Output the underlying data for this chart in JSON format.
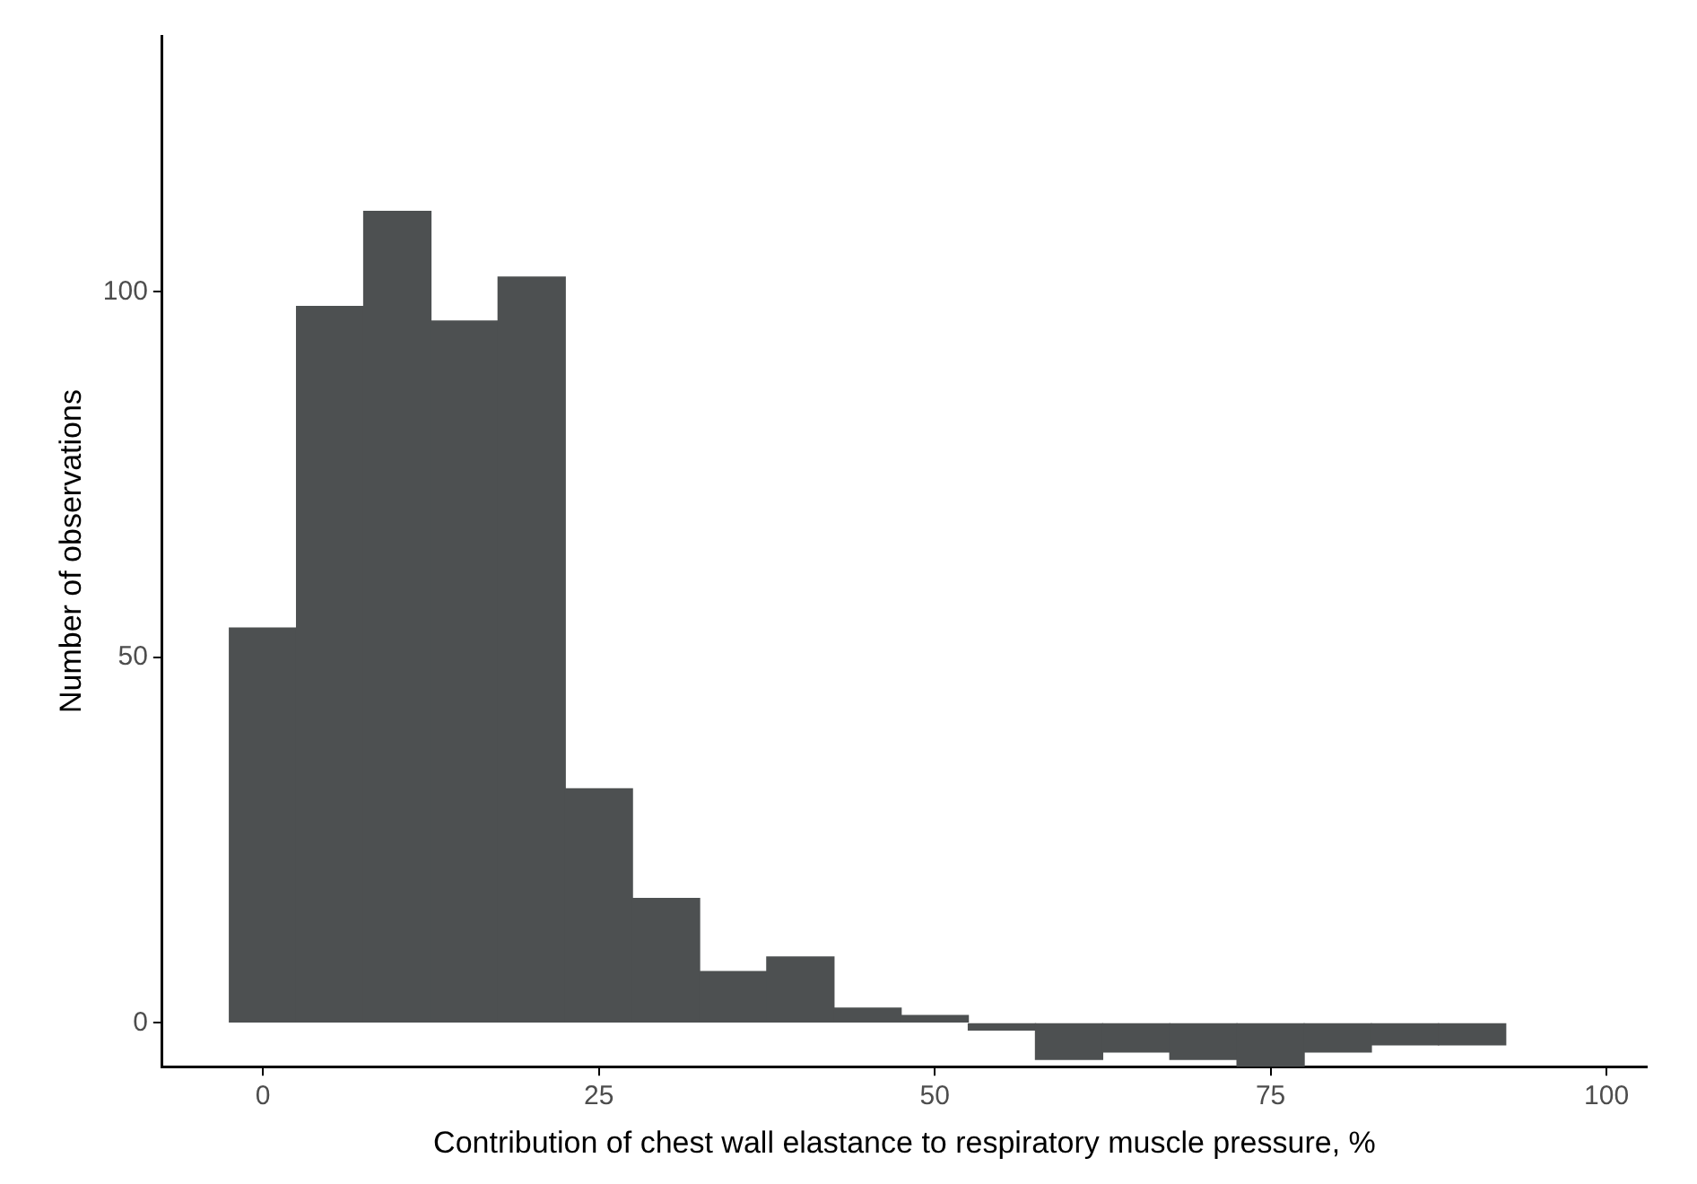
{
  "chart_data": {
    "type": "histogram",
    "xlabel": "Contribution of chest wall elastance to respiratory muscle pressure, %",
    "ylabel": "Number of observations",
    "bins": [
      -2.5,
      2.5,
      7.5,
      12.5,
      17.5,
      22.5,
      27.5,
      32.5,
      37.5,
      42.5,
      47.5,
      52.5,
      57.5,
      62.5,
      67.5,
      72.5,
      77.5,
      82.5,
      87.5,
      92.5
    ],
    "values": [
      54,
      98,
      111,
      96,
      102,
      32,
      17,
      7,
      9,
      2,
      1,
      -1,
      -5,
      -4,
      -5,
      -6,
      -4,
      -3,
      -3
    ],
    "color": "#4d5051",
    "xlim": [
      -7.5,
      103
    ],
    "xticks": [
      0,
      25,
      50,
      75,
      100
    ],
    "ylim": [
      -6,
      135
    ],
    "yticks": [
      0,
      50,
      100
    ],
    "grid": false,
    "legend": false
  }
}
